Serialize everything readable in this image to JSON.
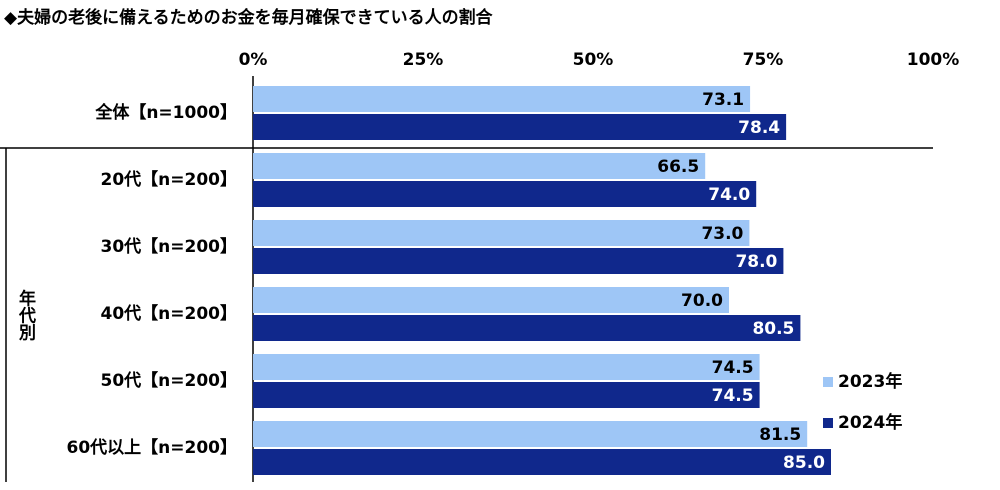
{
  "chart_data": {
    "type": "bar",
    "orientation": "horizontal",
    "title": "◆夫婦の老後に備えるためのお金を毎月確保できている人の割合",
    "categories": [
      "全体【n=1000】",
      "20代【n=200】",
      "30代【n=200】",
      "40代【n=200】",
      "50代【n=200】",
      "60代以上【n=200】"
    ],
    "group_label": "年代別",
    "series": [
      {
        "name": "2023年",
        "color": "#9ec6f6",
        "values": [
          73.1,
          66.5,
          73.0,
          70.0,
          74.5,
          81.5
        ],
        "value_labels": [
          "73.1",
          "66.5",
          "73.0",
          "70.0",
          "74.5",
          "81.5"
        ],
        "label_color": "#000000"
      },
      {
        "name": "2024年",
        "color": "#10288c",
        "values": [
          78.4,
          74.0,
          78.0,
          80.5,
          74.5,
          85.0
        ],
        "value_labels": [
          "78.4",
          "74.0",
          "78.0",
          "80.5",
          "74.5",
          "85.0"
        ],
        "label_color": "#ffffff"
      }
    ],
    "xlim": [
      0,
      100
    ],
    "xticks": [
      {
        "value": 0,
        "label": "0%"
      },
      {
        "value": 25,
        "label": "25%"
      },
      {
        "value": 50,
        "label": "50%"
      },
      {
        "value": 75,
        "label": "75%"
      },
      {
        "value": 100,
        "label": "100%"
      }
    ],
    "legend": "lower right"
  }
}
